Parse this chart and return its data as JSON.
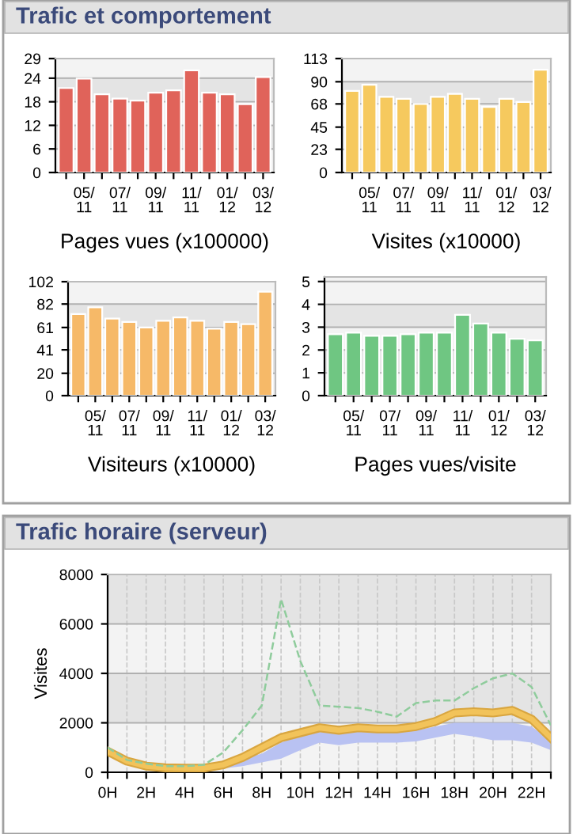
{
  "chart_data": [
    {
      "type": "bar",
      "title": "Trafic et comportement",
      "xlabel": "Pages vues (x100000)",
      "categories": [
        null,
        "05/\n11",
        null,
        "07/\n11",
        null,
        "09/\n11",
        null,
        "11/\n11",
        null,
        "01/\n12",
        null,
        "03/\n12"
      ],
      "values": [
        21.5,
        23.9,
        19.9,
        18.8,
        18.3,
        20.3,
        20.9,
        26.0,
        20.3,
        19.9,
        17.4,
        24.3
      ],
      "color": "#e0635a",
      "ylim": [
        0,
        29
      ],
      "yticks": [
        0,
        6,
        12,
        18,
        24,
        29
      ],
      "grid": "y"
    },
    {
      "type": "bar",
      "xlabel": "Visites (x10000)",
      "categories": [
        null,
        "05/\n11",
        null,
        "07/\n11",
        null,
        "09/\n11",
        null,
        "11/\n11",
        null,
        "01/\n12",
        null,
        "03/\n12"
      ],
      "values": [
        81,
        87,
        75,
        73,
        68,
        75,
        78,
        73,
        65,
        73,
        70,
        102
      ],
      "color": "#f6c95e",
      "ylim": [
        0,
        113
      ],
      "yticks": [
        0,
        23,
        45,
        68,
        90,
        113
      ],
      "grid": "y"
    },
    {
      "type": "bar",
      "xlabel": "Visiteurs (x10000)",
      "categories": [
        null,
        "05/\n11",
        null,
        "07/\n11",
        null,
        "09/\n11",
        null,
        "11/\n11",
        null,
        "01/\n12",
        null,
        "03/\n12"
      ],
      "values": [
        73,
        79,
        69,
        66,
        61,
        67,
        70,
        67,
        60,
        66,
        64,
        93
      ],
      "color": "#f6b968",
      "ylim": [
        0,
        102
      ],
      "yticks": [
        0,
        20,
        41,
        61,
        82,
        102
      ],
      "grid": "y"
    },
    {
      "type": "bar",
      "xlabel": "Pages vues/visite",
      "categories": [
        null,
        "05/\n11",
        null,
        "07/\n11",
        null,
        "09/\n11",
        null,
        "11/\n11",
        null,
        "01/\n12",
        null,
        "03/\n12"
      ],
      "values": [
        2.69,
        2.76,
        2.62,
        2.62,
        2.69,
        2.76,
        2.76,
        3.54,
        3.16,
        2.76,
        2.49,
        2.42
      ],
      "color": "#6fc682",
      "ylim": [
        0,
        5.2
      ],
      "yticks": [
        0,
        1,
        2,
        3,
        4,
        5
      ],
      "grid": "y"
    },
    {
      "type": "line",
      "title": "Trafic horaire (serveur)",
      "ylabel": "Visites",
      "x": [
        0,
        1,
        2,
        3,
        4,
        5,
        6,
        7,
        8,
        9,
        10,
        11,
        12,
        13,
        14,
        15,
        16,
        17,
        18,
        19,
        20,
        21,
        22,
        23
      ],
      "xlim": [
        0,
        23
      ],
      "ylim": [
        0,
        8000
      ],
      "yticks": [
        0,
        2000,
        4000,
        6000,
        8000
      ],
      "xticks": [
        {
          "value": 0,
          "label": "0H"
        },
        {
          "value": 1,
          "label": null
        },
        {
          "value": 2,
          "label": "2H"
        },
        {
          "value": 3,
          "label": null
        },
        {
          "value": 4,
          "label": "4H"
        },
        {
          "value": 5,
          "label": null
        },
        {
          "value": 6,
          "label": "6H"
        },
        {
          "value": 7,
          "label": null
        },
        {
          "value": 8,
          "label": "8H"
        },
        {
          "value": 9,
          "label": null
        },
        {
          "value": 10,
          "label": "10H"
        },
        {
          "value": 11,
          "label": null
        },
        {
          "value": 12,
          "label": "12H"
        },
        {
          "value": 13,
          "label": null
        },
        {
          "value": 14,
          "label": "14H"
        },
        {
          "value": 15,
          "label": null
        },
        {
          "value": 16,
          "label": "16H"
        },
        {
          "value": 17,
          "label": null
        },
        {
          "value": 18,
          "label": "18H"
        },
        {
          "value": 19,
          "label": null
        },
        {
          "value": 20,
          "label": "20H"
        },
        {
          "value": 21,
          "label": null
        },
        {
          "value": 22,
          "label": "22H"
        },
        {
          "value": 23,
          "label": null
        }
      ],
      "grid": true,
      "series": [
        {
          "color": "#8fcc9c",
          "line_style": "dashed",
          "values": [
            1000,
            500,
            350,
            250,
            250,
            300,
            800,
            1700,
            2700,
            7000,
            4500,
            2700,
            2650,
            2600,
            2450,
            2250,
            2800,
            2900,
            2900,
            3400,
            3800,
            4000,
            3450,
            1900
          ]
        },
        {
          "color": "#f2c35a",
          "line_style": "solid",
          "values": [
            850,
            450,
            250,
            180,
            170,
            170,
            300,
            600,
            1000,
            1400,
            1600,
            1800,
            1700,
            1800,
            1750,
            1750,
            1850,
            2050,
            2400,
            2450,
            2400,
            2500,
            2150,
            1400
          ],
          "lower": [
            700,
            350,
            180,
            120,
            100,
            100,
            150,
            250,
            400,
            550,
            900,
            1200,
            1100,
            1200,
            1200,
            1200,
            1250,
            1400,
            1550,
            1450,
            1300,
            1300,
            1200,
            900
          ],
          "upper": [
            850,
            450,
            250,
            180,
            170,
            170,
            300,
            550,
            750,
            1200,
            1500,
            1700,
            1600,
            1650,
            1650,
            1650,
            1700,
            1850,
            2000,
            2000,
            2000,
            2000,
            1850,
            1300
          ]
        }
      ]
    }
  ]
}
